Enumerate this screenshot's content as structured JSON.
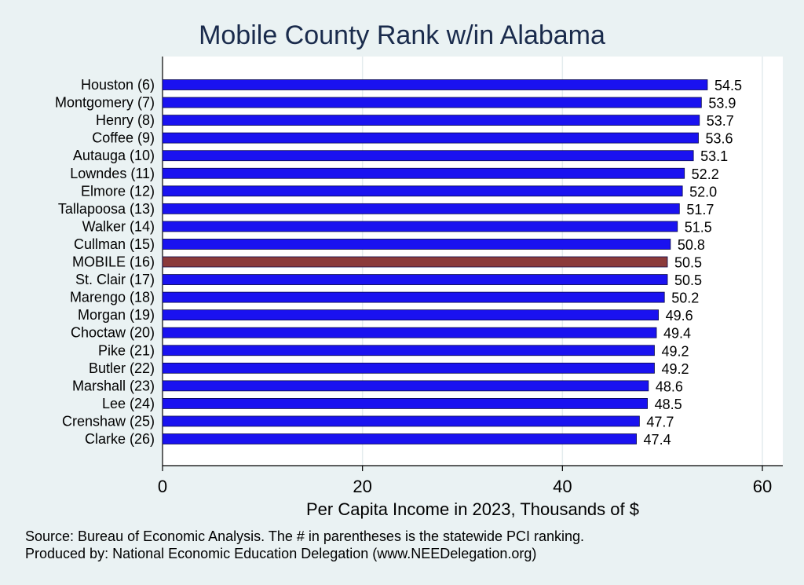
{
  "chart_data": {
    "type": "bar",
    "orientation": "horizontal",
    "title": "Mobile County Rank w/in Alabama",
    "xlabel": "Per Capita Income in 2023, Thousands of $",
    "ylabel": "",
    "xlim": [
      0,
      60
    ],
    "xticks": [
      "0",
      "20",
      "40",
      "60"
    ],
    "grid": "vertical",
    "categories": [
      "Houston  (6)",
      "Montgomery  (7)",
      "Henry  (8)",
      "Coffee  (9)",
      "Autauga (10)",
      "Lowndes (11)",
      "Elmore (12)",
      "Tallapoosa (13)",
      "Walker (14)",
      "Cullman (15)",
      "MOBILE (16)",
      "St. Clair (17)",
      "Marengo (18)",
      "Morgan (19)",
      "Choctaw (20)",
      "Pike (21)",
      "Butler (22)",
      "Marshall (23)",
      "Lee (24)",
      "Crenshaw (25)",
      "Clarke (26)"
    ],
    "values": [
      54.5,
      53.9,
      53.7,
      53.6,
      53.1,
      52.2,
      52.0,
      51.7,
      51.5,
      50.8,
      50.5,
      50.5,
      50.2,
      49.6,
      49.4,
      49.2,
      49.2,
      48.6,
      48.5,
      47.7,
      47.4
    ],
    "value_labels": [
      "54.5",
      "53.9",
      "53.7",
      "53.6",
      "53.1",
      "52.2",
      "52.0",
      "51.7",
      "51.5",
      "50.8",
      "50.5",
      "50.5",
      "50.2",
      "49.6",
      "49.4",
      "49.2",
      "49.2",
      "48.6",
      "48.5",
      "47.7",
      "47.4"
    ],
    "highlight_category": "MOBILE (16)",
    "colors": {
      "bar": "#1a12f0",
      "highlight": "#8b3a3a",
      "background": "#eaf2f3",
      "plot_background": "#ffffff",
      "grid": "#e4ecee",
      "title": "#1a2b4c"
    }
  },
  "footer": {
    "source_line": "Source: Bureau of Economic Analysis. The # in parentheses is the statewide PCI ranking.",
    "produced_line": "Produced by: National Economic Education Delegation (www.NEEDelegation.org)"
  }
}
